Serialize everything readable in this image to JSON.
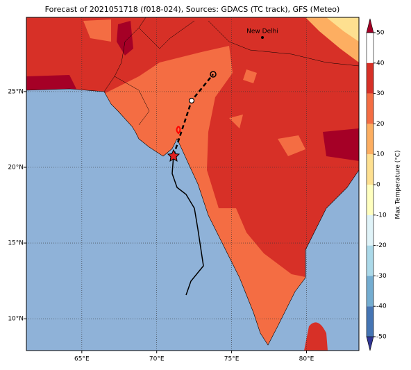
{
  "title": "Forecast of 2021051718 (f018-024), Sources: GDACS (TC track), GFS (Meteo)",
  "map": {
    "xlim": [
      61.3,
      83.5
    ],
    "ylim": [
      7.9,
      29.9
    ],
    "xticks": [
      {
        "value": 65,
        "label": "65°E"
      },
      {
        "value": 70,
        "label": "70°E"
      },
      {
        "value": 75,
        "label": "75°E"
      },
      {
        "value": 80,
        "label": "80°E"
      }
    ],
    "yticks": [
      {
        "value": 10,
        "label": "10°N"
      },
      {
        "value": 15,
        "label": "15°N"
      },
      {
        "value": 20,
        "label": "20°N"
      },
      {
        "value": 25,
        "label": "25°N"
      }
    ],
    "city": "New Delhi"
  },
  "colorbar": {
    "label": "Max Temperature (°C)",
    "ticks": [
      -50,
      -40,
      -30,
      -20,
      -10,
      0,
      10,
      20,
      30,
      40,
      50
    ],
    "colors": [
      "#313695",
      "#4575b4",
      "#74add1",
      "#abd9e9",
      "#e0f3f8",
      "#ffffbf",
      "#fee090",
      "#fdae61",
      "#f46d43",
      "#d73027",
      "#a50026"
    ]
  }
}
